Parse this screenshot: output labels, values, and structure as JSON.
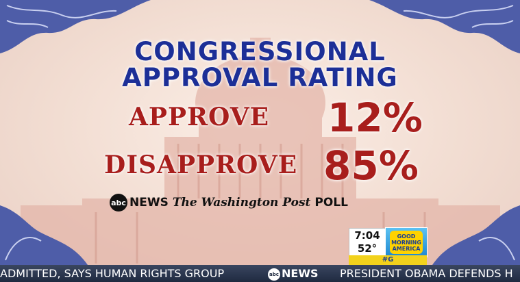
{
  "title": {
    "line1": "CONGRESSIONAL",
    "line2": "APPROVAL RATING"
  },
  "stats": {
    "approve": {
      "label": "APPROVE",
      "value": "12%"
    },
    "disapprove": {
      "label": "DISAPPROVE",
      "value": "85%"
    }
  },
  "source": {
    "abc_logo": "abc",
    "news": "NEWS",
    "paper": "The Washington Post",
    "poll": "POLL"
  },
  "clock": {
    "time": "7:04",
    "temperature": "52°"
  },
  "show_logo": {
    "word1": "GOOD",
    "word2": "MORNING",
    "word3": "AMERICA"
  },
  "hashtag": "#G",
  "ticker": {
    "left_text": "ADMITTED, SAYS HUMAN RIGHTS GROUP",
    "logo_abc": "abc",
    "logo_news": "NEWS",
    "right_text": "PRESIDENT OBAMA DEFENDS H"
  },
  "colors": {
    "title": "#1c2f97",
    "stat": "#a81e1c",
    "background": "#f2ddd2",
    "ticker": "#1f2a40"
  }
}
